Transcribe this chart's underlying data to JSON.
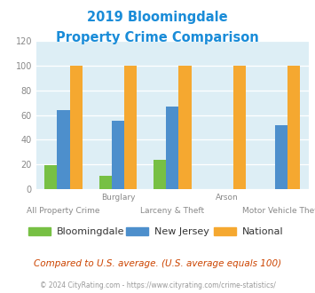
{
  "title_line1": "2019 Bloomingdale",
  "title_line2": "Property Crime Comparison",
  "title_color": "#1a8cd8",
  "categories": [
    "All Property Crime",
    "Burglary",
    "Larceny & Theft",
    "Arson",
    "Motor Vehicle Theft"
  ],
  "bloomingdale": [
    19,
    11,
    24,
    0,
    0
  ],
  "new_jersey": [
    64,
    55,
    67,
    0,
    52
  ],
  "national": [
    100,
    100,
    100,
    100,
    100
  ],
  "bar_color_bloomingdale": "#77c044",
  "bar_color_nj": "#4d8fcc",
  "bar_color_national": "#f5a830",
  "ylim": [
    0,
    120
  ],
  "yticks": [
    0,
    20,
    40,
    60,
    80,
    100,
    120
  ],
  "plot_bg_color": "#ddeef5",
  "top_x_labels": [
    [
      "Burglary",
      1
    ],
    [
      "Arson",
      3
    ]
  ],
  "bottom_x_labels": [
    [
      "All Property Crime",
      0
    ],
    [
      "Larceny & Theft",
      2
    ],
    [
      "Motor Vehicle Theft",
      4
    ]
  ],
  "footer_text": "Compared to U.S. average. (U.S. average equals 100)",
  "footer_color": "#cc4400",
  "copyright_text": "© 2024 CityRating.com - https://www.cityrating.com/crime-statistics/",
  "copyright_color": "#999999",
  "legend_labels": [
    "Bloomingdale",
    "New Jersey",
    "National"
  ]
}
